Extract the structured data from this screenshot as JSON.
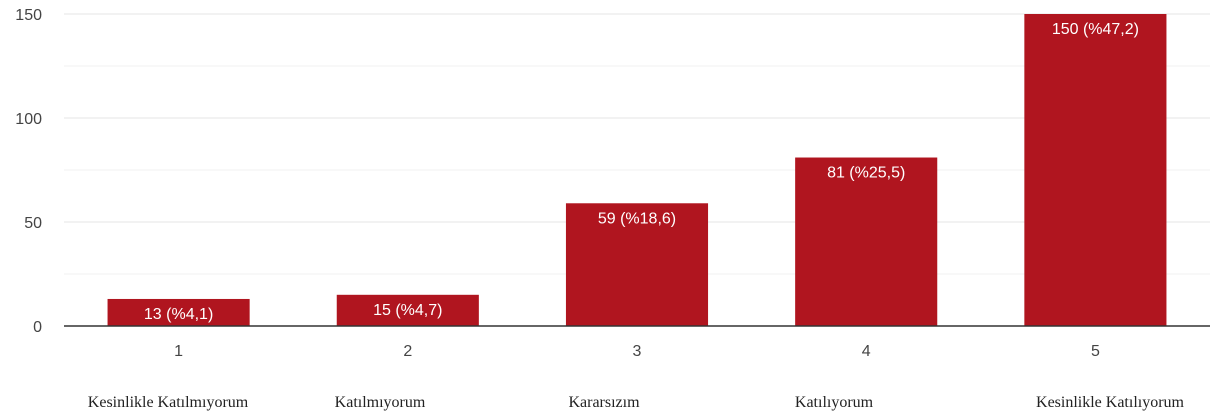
{
  "chart_data": {
    "type": "bar",
    "categories": [
      "1",
      "2",
      "3",
      "4",
      "5"
    ],
    "values": [
      13,
      15,
      59,
      81,
      150
    ],
    "data_labels": [
      "13 (%4,1)",
      "15 (%4,7)",
      "59 (%18,6)",
      "81 (%25,5)",
      "150 (%47,2)"
    ],
    "category_text": [
      "Kesinlikle Katılmıyorum",
      "Katılmıyorum",
      "Kararsızım",
      "Katılıyorum",
      "Kesinlikle Katılıyorum"
    ],
    "y_ticks": [
      0,
      50,
      100,
      150
    ],
    "ylim": [
      0,
      150
    ],
    "grid": true,
    "bar_color": "#b0151f",
    "title": "",
    "xlabel": "",
    "ylabel": ""
  }
}
